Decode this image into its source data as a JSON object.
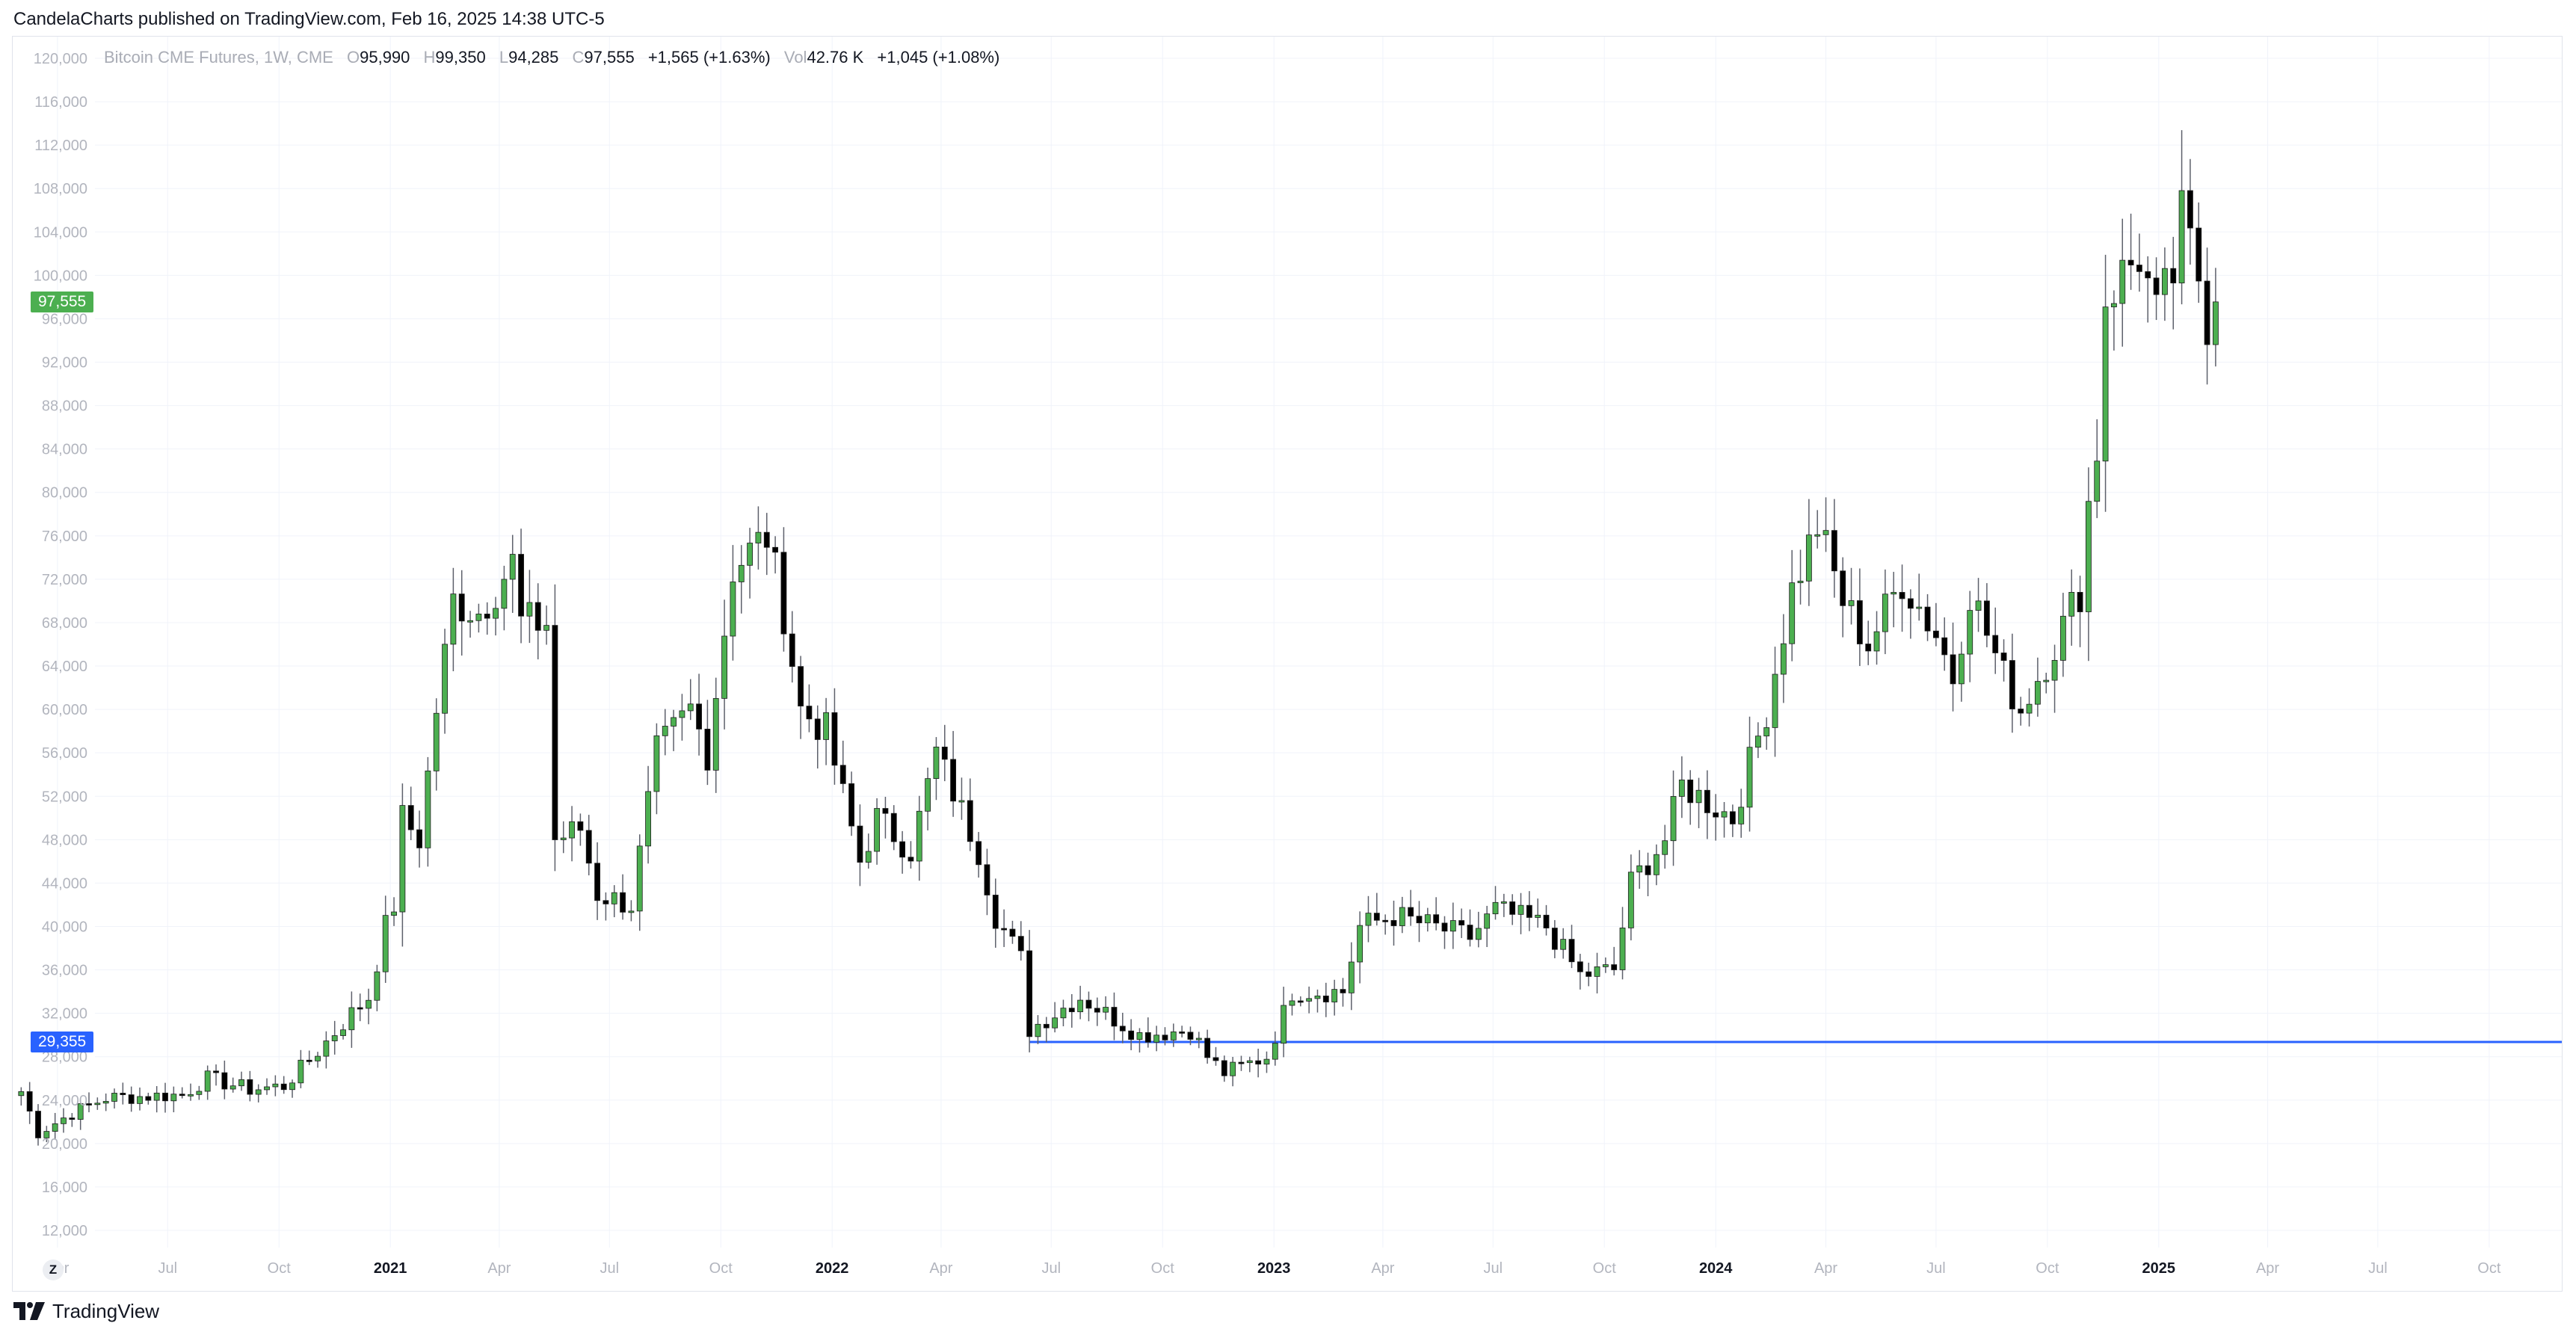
{
  "header": {
    "publisher": "CandelaCharts",
    "published_text": "CandelaCharts published on TradingView.com, Feb 16, 2025 14:38 UTC-5"
  },
  "legend": {
    "symbol": "Bitcoin CME Futures, 1W, CME",
    "o_label": "O",
    "o_value": "95,990",
    "h_label": "H",
    "h_value": "99,350",
    "l_label": "L",
    "l_value": "94,285",
    "c_label": "C",
    "c_value": "97,555",
    "change": "+1,565 (+1.63%)",
    "vol_label": "Vol",
    "vol_value": "42.76 K",
    "vol_change": "+1,045 (+1.08%)"
  },
  "price_tags": {
    "last_price": "97,555",
    "horizontal_line": "29,355"
  },
  "footer": {
    "brand": "TradingView",
    "zoom_label": "Z"
  },
  "colors": {
    "bull_body": "#4caf50",
    "bear_body": "#000000",
    "wick": "#5d606b",
    "grid": "#f0f3fa",
    "axis_text": "#b2b5be",
    "level_line": "#2962ff",
    "last_price_tag": "#4caf50"
  },
  "chart_data": {
    "type": "candlestick",
    "title": "Bitcoin CME Futures, 1W, CME",
    "interval": "1W",
    "y_axis": {
      "side": "left",
      "ylim": [
        10000,
        122000
      ],
      "ticks": [
        12000,
        16000,
        20000,
        24000,
        28000,
        32000,
        36000,
        40000,
        44000,
        48000,
        52000,
        56000,
        60000,
        64000,
        68000,
        72000,
        76000,
        80000,
        84000,
        88000,
        92000,
        96000,
        100000,
        104000,
        108000,
        112000,
        116000,
        120000
      ],
      "tick_labels": [
        "12,000",
        "16,000",
        "20,000",
        "24,000",
        "28,000",
        "32,000",
        "36,000",
        "40,000",
        "44,000",
        "48,000",
        "52,000",
        "56,000",
        "60,000",
        "64,000",
        "68,000",
        "72,000",
        "76,000",
        "80,000",
        "84,000",
        "88,000",
        "92,000",
        "96,000",
        "100,000",
        "104,000",
        "108,000",
        "112,000",
        "116,000",
        "120,000"
      ]
    },
    "x_axis": {
      "start": "2020-02-24",
      "end": "2025-11-30",
      "ticks": [
        {
          "label": "Apr",
          "date": "2020-04-01",
          "bold": false
        },
        {
          "label": "Jul",
          "date": "2020-07-01",
          "bold": false
        },
        {
          "label": "Oct",
          "date": "2020-10-01",
          "bold": false
        },
        {
          "label": "2021",
          "date": "2021-01-01",
          "bold": true
        },
        {
          "label": "Apr",
          "date": "2021-04-01",
          "bold": false
        },
        {
          "label": "Jul",
          "date": "2021-07-01",
          "bold": false
        },
        {
          "label": "Oct",
          "date": "2021-10-01",
          "bold": false
        },
        {
          "label": "2022",
          "date": "2022-01-01",
          "bold": true
        },
        {
          "label": "Apr",
          "date": "2022-04-01",
          "bold": false
        },
        {
          "label": "Jul",
          "date": "2022-07-01",
          "bold": false
        },
        {
          "label": "Oct",
          "date": "2022-10-01",
          "bold": false
        },
        {
          "label": "2023",
          "date": "2023-01-01",
          "bold": true
        },
        {
          "label": "Apr",
          "date": "2023-04-01",
          "bold": false
        },
        {
          "label": "Jul",
          "date": "2023-07-01",
          "bold": false
        },
        {
          "label": "Oct",
          "date": "2023-10-01",
          "bold": false
        },
        {
          "label": "2024",
          "date": "2024-01-01",
          "bold": true
        },
        {
          "label": "Apr",
          "date": "2024-04-01",
          "bold": false
        },
        {
          "label": "Jul",
          "date": "2024-07-01",
          "bold": false
        },
        {
          "label": "Oct",
          "date": "2024-10-01",
          "bold": false
        },
        {
          "label": "2025",
          "date": "2025-01-01",
          "bold": true
        },
        {
          "label": "Apr",
          "date": "2025-04-01",
          "bold": false
        },
        {
          "label": "Jul",
          "date": "2025-07-01",
          "bold": false
        },
        {
          "label": "Oct",
          "date": "2025-10-01",
          "bold": false
        }
      ]
    },
    "grid": true,
    "horizontal_line": {
      "value": 29355,
      "from_date": "2022-06-13"
    },
    "last_price": 97555,
    "keypoints": [
      [
        "2020-03-02",
        24800
      ],
      [
        "2020-03-16",
        21000
      ],
      [
        "2020-04-13",
        22800
      ],
      [
        "2020-05-11",
        24200
      ],
      [
        "2020-07-13",
        24500
      ],
      [
        "2020-08-03",
        26000
      ],
      [
        "2020-09-07",
        25000
      ],
      [
        "2020-10-05",
        25300
      ],
      [
        "2020-11-02",
        28500
      ],
      [
        "2020-11-30",
        32000
      ],
      [
        "2020-12-14",
        33500
      ],
      [
        "2020-12-28",
        40000
      ],
      [
        "2021-01-04",
        42000
      ],
      [
        "2021-01-11",
        50000
      ],
      [
        "2021-01-25",
        48000
      ],
      [
        "2021-02-08",
        60000
      ],
      [
        "2021-02-22",
        70000
      ],
      [
        "2021-03-15",
        69000
      ],
      [
        "2021-04-12",
        73500
      ],
      [
        "2021-04-19",
        68000
      ],
      [
        "2021-05-10",
        68000
      ],
      [
        "2021-05-17",
        48000
      ],
      [
        "2021-06-07",
        49000
      ],
      [
        "2021-06-21",
        43000
      ],
      [
        "2021-07-19",
        42000
      ],
      [
        "2021-08-09",
        56000
      ],
      [
        "2021-09-06",
        60000
      ],
      [
        "2021-09-20",
        56000
      ],
      [
        "2021-10-11",
        73000
      ],
      [
        "2021-11-08",
        76000
      ],
      [
        "2021-11-22",
        69000
      ],
      [
        "2021-12-06",
        60000
      ],
      [
        "2021-12-27",
        58000
      ],
      [
        "2022-01-24",
        46000
      ],
      [
        "2022-02-07",
        50000
      ],
      [
        "2022-03-07",
        47000
      ],
      [
        "2022-03-28",
        56000
      ],
      [
        "2022-05-02",
        47000
      ],
      [
        "2022-05-16",
        41000
      ],
      [
        "2022-06-06",
        37000
      ],
      [
        "2022-06-13",
        30500
      ],
      [
        "2022-07-25",
        33500
      ],
      [
        "2022-08-15",
        32000
      ],
      [
        "2022-09-12",
        30000
      ],
      [
        "2022-10-24",
        30500
      ],
      [
        "2022-11-07",
        28000
      ],
      [
        "2022-11-21",
        26500
      ],
      [
        "2022-12-26",
        28000
      ],
      [
        "2023-01-16",
        34000
      ],
      [
        "2023-02-27",
        34000
      ],
      [
        "2023-03-13",
        40000
      ],
      [
        "2023-04-10",
        41000
      ],
      [
        "2023-06-12",
        39000
      ],
      [
        "2023-07-03",
        41500
      ],
      [
        "2023-08-14",
        40000
      ],
      [
        "2023-09-11",
        35500
      ],
      [
        "2023-10-09",
        36000
      ],
      [
        "2023-10-23",
        44000
      ],
      [
        "2023-11-20",
        48000
      ],
      [
        "2023-12-04",
        53000
      ],
      [
        "2024-01-15",
        50000
      ],
      [
        "2024-02-12",
        60000
      ],
      [
        "2024-03-04",
        71000
      ],
      [
        "2024-03-25",
        77000
      ],
      [
        "2024-04-15",
        70000
      ],
      [
        "2024-05-06",
        66000
      ],
      [
        "2024-06-03",
        72000
      ],
      [
        "2024-07-01",
        67000
      ],
      [
        "2024-07-15",
        63000
      ],
      [
        "2024-07-29",
        71000
      ],
      [
        "2024-08-26",
        63000
      ],
      [
        "2024-09-09",
        60000
      ],
      [
        "2024-10-07",
        66000
      ],
      [
        "2024-10-28",
        71000
      ],
      [
        "2024-11-04",
        79000
      ],
      [
        "2024-11-11",
        84000
      ],
      [
        "2024-11-18",
        98000
      ],
      [
        "2024-12-02",
        100000
      ],
      [
        "2024-12-16",
        102000
      ],
      [
        "2024-12-30",
        96000
      ],
      [
        "2025-01-13",
        100000
      ],
      [
        "2025-01-20",
        105000
      ],
      [
        "2025-02-03",
        100000
      ],
      [
        "2025-02-10",
        96000
      ],
      [
        "2025-02-17",
        97555
      ]
    ]
  }
}
